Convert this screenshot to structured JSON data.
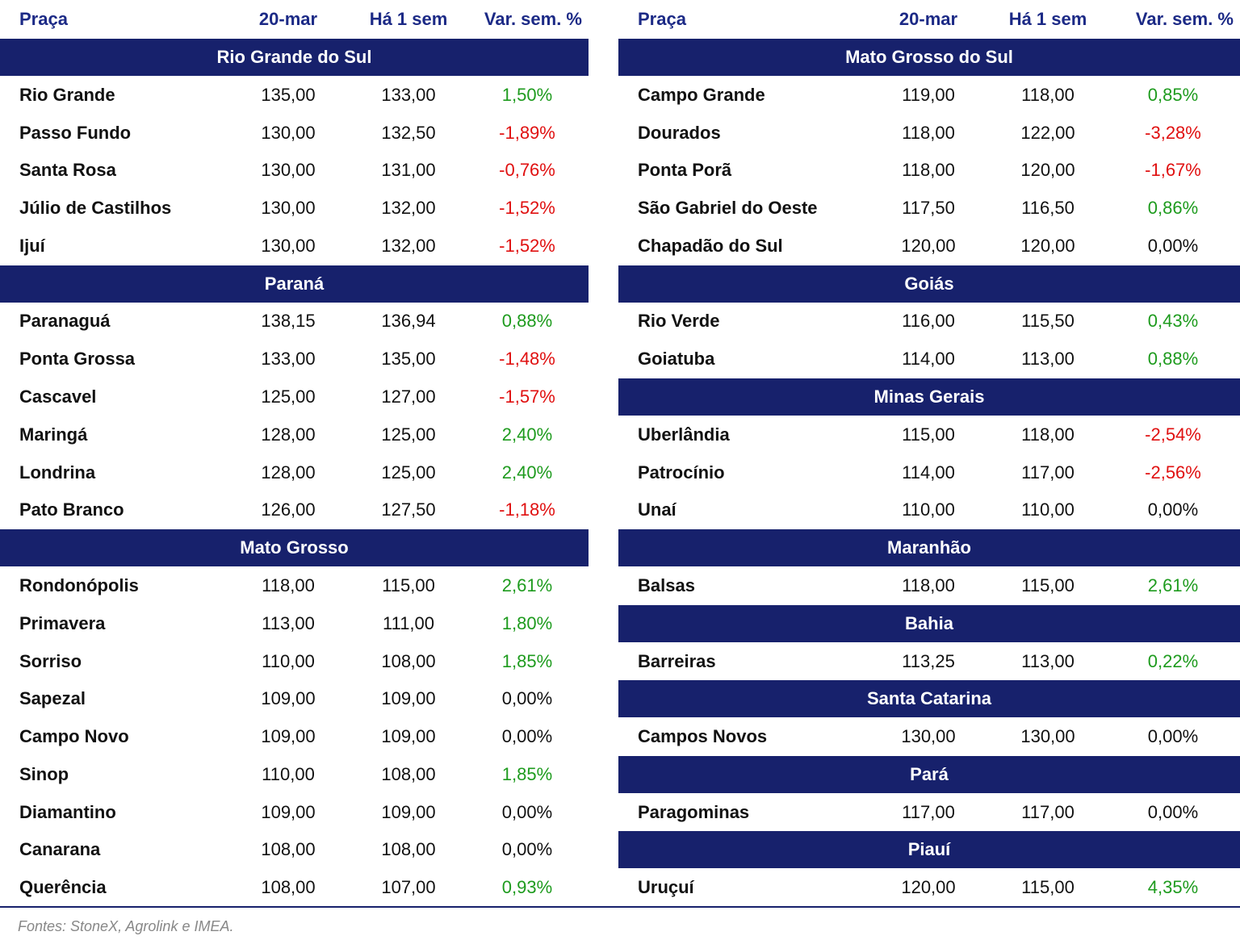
{
  "tables": [
    {
      "header": [
        "Praça",
        "20-mar",
        "Há 1 sem",
        "Var. sem. %"
      ],
      "sections": [
        {
          "title": "Rio Grande do Sul",
          "rows": [
            [
              "Rio Grande",
              "135,00",
              "133,00",
              "1,50%"
            ],
            [
              "Passo Fundo",
              "130,00",
              "132,50",
              "-1,89%"
            ],
            [
              "Santa Rosa",
              "130,00",
              "131,00",
              "-0,76%"
            ],
            [
              "Júlio de Castilhos",
              "130,00",
              "132,00",
              "-1,52%"
            ],
            [
              "Ijuí",
              "130,00",
              "132,00",
              "-1,52%"
            ]
          ]
        },
        {
          "title": "Paraná",
          "rows": [
            [
              "Paranaguá",
              "138,15",
              "136,94",
              "0,88%"
            ],
            [
              "Ponta Grossa",
              "133,00",
              "135,00",
              "-1,48%"
            ],
            [
              "Cascavel",
              "125,00",
              "127,00",
              "-1,57%"
            ],
            [
              "Maringá",
              "128,00",
              "125,00",
              "2,40%"
            ],
            [
              "Londrina",
              "128,00",
              "125,00",
              "2,40%"
            ],
            [
              "Pato Branco",
              "126,00",
              "127,50",
              "-1,18%"
            ]
          ]
        },
        {
          "title": "Mato Grosso",
          "rows": [
            [
              "Rondonópolis",
              "118,00",
              "115,00",
              "2,61%"
            ],
            [
              "Primavera",
              "113,00",
              "111,00",
              "1,80%"
            ],
            [
              "Sorriso",
              "110,00",
              "108,00",
              "1,85%"
            ],
            [
              "Sapezal",
              "109,00",
              "109,00",
              "0,00%"
            ],
            [
              "Campo Novo",
              "109,00",
              "109,00",
              "0,00%"
            ],
            [
              "Sinop",
              "110,00",
              "108,00",
              "1,85%"
            ],
            [
              "Diamantino",
              "109,00",
              "109,00",
              "0,00%"
            ],
            [
              "Canarana",
              "108,00",
              "108,00",
              "0,00%"
            ],
            [
              "Querência",
              "108,00",
              "107,00",
              "0,93%"
            ]
          ]
        }
      ]
    },
    {
      "header": [
        "Praça",
        "20-mar",
        "Há 1 sem",
        "Var. sem. %"
      ],
      "sections": [
        {
          "title": "Mato Grosso do Sul",
          "rows": [
            [
              "Campo Grande",
              "119,00",
              "118,00",
              "0,85%"
            ],
            [
              "Dourados",
              "118,00",
              "122,00",
              "-3,28%"
            ],
            [
              "Ponta Porã",
              "118,00",
              "120,00",
              "-1,67%"
            ],
            [
              "São Gabriel do Oeste",
              "117,50",
              "116,50",
              "0,86%"
            ],
            [
              "Chapadão do Sul",
              "120,00",
              "120,00",
              "0,00%"
            ]
          ]
        },
        {
          "title": "Goiás",
          "rows": [
            [
              "Rio Verde",
              "116,00",
              "115,50",
              "0,43%"
            ],
            [
              "Goiatuba",
              "114,00",
              "113,00",
              "0,88%"
            ]
          ]
        },
        {
          "title": "Minas Gerais",
          "rows": [
            [
              "Uberlândia",
              "115,00",
              "118,00",
              "-2,54%"
            ],
            [
              "Patrocínio",
              "114,00",
              "117,00",
              "-2,56%"
            ],
            [
              "Unaí",
              "110,00",
              "110,00",
              "0,00%"
            ]
          ]
        },
        {
          "title": "Maranhão",
          "rows": [
            [
              "Balsas",
              "118,00",
              "115,00",
              "2,61%"
            ]
          ]
        },
        {
          "title": "Bahia",
          "rows": [
            [
              "Barreiras",
              "113,25",
              "113,00",
              "0,22%"
            ]
          ]
        },
        {
          "title": "Santa Catarina",
          "rows": [
            [
              "Campos Novos",
              "130,00",
              "130,00",
              "0,00%"
            ]
          ]
        },
        {
          "title": "Pará",
          "rows": [
            [
              "Paragominas",
              "117,00",
              "117,00",
              "0,00%"
            ]
          ]
        },
        {
          "title": "Piauí",
          "rows": [
            [
              "Uruçuí",
              "120,00",
              "115,00",
              "4,35%"
            ]
          ]
        }
      ]
    }
  ],
  "source": "Fontes: StoneX, Agrolink e IMEA."
}
